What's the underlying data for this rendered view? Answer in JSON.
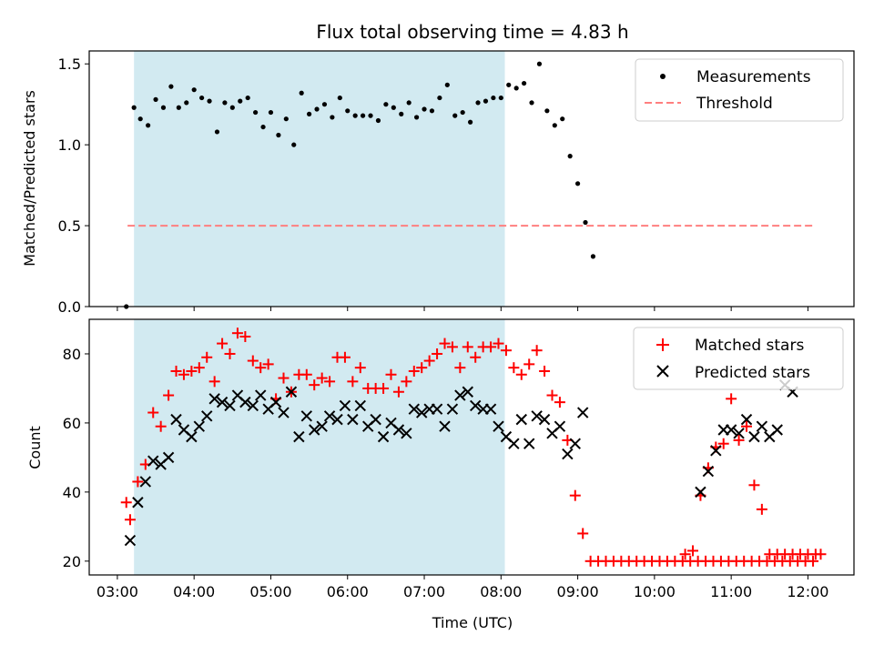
{
  "chart_data": [
    {
      "type": "scatter",
      "title": "Flux total observing time = 4.83 h",
      "ylabel": "Matched/Predicted stars",
      "xlabel": "",
      "ylim": [
        0,
        1.58
      ],
      "yticks": [
        0.0,
        0.5,
        1.0,
        1.5
      ],
      "ytick_labels": [
        "0.0",
        "0.5",
        "1.0",
        "1.5"
      ],
      "legend_position": "top-right",
      "shaded_interval": [
        "03:13",
        "08:03"
      ],
      "series": [
        {
          "name": "Measurements",
          "marker": "dot",
          "color": "#000000",
          "points": [
            [
              "03:07",
              0.0
            ],
            [
              "03:13",
              1.23
            ],
            [
              "03:18",
              1.16
            ],
            [
              "03:24",
              1.12
            ],
            [
              "03:30",
              1.28
            ],
            [
              "03:36",
              1.23
            ],
            [
              "03:42",
              1.36
            ],
            [
              "03:48",
              1.23
            ],
            [
              "03:54",
              1.26
            ],
            [
              "04:00",
              1.34
            ],
            [
              "04:06",
              1.29
            ],
            [
              "04:12",
              1.27
            ],
            [
              "04:18",
              1.08
            ],
            [
              "04:24",
              1.26
            ],
            [
              "04:30",
              1.23
            ],
            [
              "04:36",
              1.27
            ],
            [
              "04:42",
              1.29
            ],
            [
              "04:48",
              1.2
            ],
            [
              "04:54",
              1.11
            ],
            [
              "05:00",
              1.2
            ],
            [
              "05:06",
              1.06
            ],
            [
              "05:12",
              1.16
            ],
            [
              "05:18",
              1.0
            ],
            [
              "05:24",
              1.32
            ],
            [
              "05:30",
              1.19
            ],
            [
              "05:36",
              1.22
            ],
            [
              "05:42",
              1.25
            ],
            [
              "05:48",
              1.17
            ],
            [
              "05:54",
              1.29
            ],
            [
              "06:00",
              1.21
            ],
            [
              "06:06",
              1.18
            ],
            [
              "06:12",
              1.18
            ],
            [
              "06:18",
              1.18
            ],
            [
              "06:24",
              1.15
            ],
            [
              "06:30",
              1.25
            ],
            [
              "06:36",
              1.23
            ],
            [
              "06:42",
              1.19
            ],
            [
              "06:48",
              1.26
            ],
            [
              "06:54",
              1.17
            ],
            [
              "07:00",
              1.22
            ],
            [
              "07:06",
              1.21
            ],
            [
              "07:12",
              1.29
            ],
            [
              "07:18",
              1.37
            ],
            [
              "07:24",
              1.18
            ],
            [
              "07:30",
              1.2
            ],
            [
              "07:36",
              1.14
            ],
            [
              "07:42",
              1.26
            ],
            [
              "07:48",
              1.27
            ],
            [
              "07:54",
              1.29
            ],
            [
              "08:00",
              1.29
            ],
            [
              "08:06",
              1.37
            ],
            [
              "08:12",
              1.35
            ],
            [
              "08:18",
              1.38
            ],
            [
              "08:24",
              1.26
            ],
            [
              "08:30",
              1.5
            ],
            [
              "08:36",
              1.21
            ],
            [
              "08:42",
              1.12
            ],
            [
              "08:48",
              1.16
            ],
            [
              "08:54",
              0.93
            ],
            [
              "09:00",
              0.76
            ],
            [
              "09:06",
              0.52
            ],
            [
              "09:12",
              0.31
            ]
          ]
        },
        {
          "name": "Threshold",
          "marker": "dashed-line",
          "color": "#ff7f7f",
          "x_range": [
            "03:08",
            "12:05"
          ],
          "y": 0.5
        }
      ]
    },
    {
      "type": "scatter",
      "title": "",
      "ylabel": "Count",
      "xlabel": "Time (UTC)",
      "ylim": [
        16,
        90
      ],
      "yticks": [
        20,
        40,
        60,
        80
      ],
      "ytick_labels": [
        "20",
        "40",
        "60",
        "80"
      ],
      "xticks": [
        "03:00",
        "04:00",
        "05:00",
        "06:00",
        "07:00",
        "08:00",
        "09:00",
        "10:00",
        "11:00",
        "12:00"
      ],
      "xlim": [
        "02:38",
        "12:36"
      ],
      "legend_position": "top-right",
      "shaded_interval": [
        "03:13",
        "08:03"
      ],
      "series": [
        {
          "name": "Matched stars",
          "marker": "plus",
          "color": "#ff0000",
          "points": [
            [
              "03:07",
              37
            ],
            [
              "03:10",
              32
            ],
            [
              "03:16",
              43
            ],
            [
              "03:22",
              48
            ],
            [
              "03:28",
              63
            ],
            [
              "03:34",
              59
            ],
            [
              "03:40",
              68
            ],
            [
              "03:46",
              75
            ],
            [
              "03:52",
              74
            ],
            [
              "03:58",
              75
            ],
            [
              "04:04",
              76
            ],
            [
              "04:10",
              79
            ],
            [
              "04:16",
              72
            ],
            [
              "04:22",
              83
            ],
            [
              "04:28",
              80
            ],
            [
              "04:34",
              86
            ],
            [
              "04:40",
              85
            ],
            [
              "04:46",
              78
            ],
            [
              "04:52",
              76
            ],
            [
              "04:58",
              77
            ],
            [
              "05:04",
              67
            ],
            [
              "05:10",
              73
            ],
            [
              "05:16",
              69
            ],
            [
              "05:22",
              74
            ],
            [
              "05:28",
              74
            ],
            [
              "05:34",
              71
            ],
            [
              "05:40",
              73
            ],
            [
              "05:46",
              72
            ],
            [
              "05:52",
              79
            ],
            [
              "05:58",
              79
            ],
            [
              "06:04",
              72
            ],
            [
              "06:10",
              76
            ],
            [
              "06:16",
              70
            ],
            [
              "06:22",
              70
            ],
            [
              "06:28",
              70
            ],
            [
              "06:34",
              74
            ],
            [
              "06:40",
              69
            ],
            [
              "06:46",
              72
            ],
            [
              "06:52",
              75
            ],
            [
              "06:58",
              76
            ],
            [
              "07:04",
              78
            ],
            [
              "07:10",
              80
            ],
            [
              "07:16",
              83
            ],
            [
              "07:22",
              82
            ],
            [
              "07:28",
              76
            ],
            [
              "07:34",
              82
            ],
            [
              "07:40",
              79
            ],
            [
              "07:46",
              82
            ],
            [
              "07:52",
              82
            ],
            [
              "07:58",
              83
            ],
            [
              "08:04",
              81
            ],
            [
              "08:10",
              76
            ],
            [
              "08:16",
              74
            ],
            [
              "08:22",
              77
            ],
            [
              "08:28",
              81
            ],
            [
              "08:34",
              75
            ],
            [
              "08:40",
              68
            ],
            [
              "08:46",
              66
            ],
            [
              "08:52",
              55
            ],
            [
              "08:58",
              39
            ],
            [
              "09:04",
              28
            ],
            [
              "09:10",
              20
            ],
            [
              "09:16",
              20
            ],
            [
              "09:22",
              20
            ],
            [
              "09:28",
              20
            ],
            [
              "09:34",
              20
            ],
            [
              "09:40",
              20
            ],
            [
              "09:46",
              20
            ],
            [
              "09:52",
              20
            ],
            [
              "09:58",
              20
            ],
            [
              "10:04",
              20
            ],
            [
              "10:10",
              20
            ],
            [
              "10:16",
              20
            ],
            [
              "10:22",
              20
            ],
            [
              "10:28",
              20
            ],
            [
              "10:34",
              20
            ],
            [
              "10:40",
              20
            ],
            [
              "10:46",
              20
            ],
            [
              "10:52",
              20
            ],
            [
              "10:58",
              20
            ],
            [
              "11:04",
              20
            ],
            [
              "11:10",
              20
            ],
            [
              "11:16",
              20
            ],
            [
              "11:22",
              20
            ],
            [
              "11:28",
              20
            ],
            [
              "11:34",
              20
            ],
            [
              "11:40",
              20
            ],
            [
              "11:46",
              20
            ],
            [
              "11:52",
              20
            ],
            [
              "11:58",
              20
            ],
            [
              "12:04",
              20
            ],
            [
              "10:24",
              22
            ],
            [
              "10:30",
              23
            ],
            [
              "10:36",
              39
            ],
            [
              "10:42",
              47
            ],
            [
              "10:48",
              53
            ],
            [
              "10:54",
              54
            ],
            [
              "11:00",
              67
            ],
            [
              "11:06",
              55
            ],
            [
              "11:12",
              59
            ],
            [
              "11:18",
              42
            ],
            [
              "11:24",
              35
            ],
            [
              "11:30",
              22
            ],
            [
              "11:36",
              22
            ],
            [
              "11:42",
              22
            ],
            [
              "11:48",
              22
            ],
            [
              "11:54",
              22
            ],
            [
              "12:00",
              22
            ],
            [
              "12:06",
              22
            ],
            [
              "12:10",
              22
            ]
          ]
        },
        {
          "name": "Predicted stars",
          "marker": "x",
          "color": "#000000",
          "points": [
            [
              "03:10",
              26
            ],
            [
              "03:16",
              37
            ],
            [
              "03:22",
              43
            ],
            [
              "03:28",
              49
            ],
            [
              "03:34",
              48
            ],
            [
              "03:40",
              50
            ],
            [
              "03:46",
              61
            ],
            [
              "03:52",
              58
            ],
            [
              "03:58",
              56
            ],
            [
              "04:04",
              59
            ],
            [
              "04:10",
              62
            ],
            [
              "04:16",
              67
            ],
            [
              "04:22",
              66
            ],
            [
              "04:28",
              65
            ],
            [
              "04:34",
              68
            ],
            [
              "04:40",
              66
            ],
            [
              "04:46",
              65
            ],
            [
              "04:52",
              68
            ],
            [
              "04:58",
              64
            ],
            [
              "05:04",
              66
            ],
            [
              "05:10",
              63
            ],
            [
              "05:16",
              69
            ],
            [
              "05:22",
              56
            ],
            [
              "05:28",
              62
            ],
            [
              "05:34",
              58
            ],
            [
              "05:40",
              59
            ],
            [
              "05:46",
              62
            ],
            [
              "05:52",
              61
            ],
            [
              "05:58",
              65
            ],
            [
              "06:04",
              61
            ],
            [
              "06:10",
              65
            ],
            [
              "06:16",
              59
            ],
            [
              "06:22",
              61
            ],
            [
              "06:28",
              56
            ],
            [
              "06:34",
              60
            ],
            [
              "06:40",
              58
            ],
            [
              "06:46",
              57
            ],
            [
              "06:52",
              64
            ],
            [
              "06:58",
              63
            ],
            [
              "07:04",
              64
            ],
            [
              "07:10",
              64
            ],
            [
              "07:16",
              59
            ],
            [
              "07:22",
              64
            ],
            [
              "07:28",
              68
            ],
            [
              "07:34",
              69
            ],
            [
              "07:40",
              65
            ],
            [
              "07:46",
              64
            ],
            [
              "07:52",
              64
            ],
            [
              "07:58",
              59
            ],
            [
              "08:04",
              56
            ],
            [
              "08:10",
              54
            ],
            [
              "08:16",
              61
            ],
            [
              "08:22",
              54
            ],
            [
              "08:28",
              62
            ],
            [
              "08:34",
              61
            ],
            [
              "08:40",
              57
            ],
            [
              "08:46",
              59
            ],
            [
              "08:52",
              51
            ],
            [
              "08:58",
              54
            ],
            [
              "09:04",
              63
            ],
            [
              "10:36",
              40
            ],
            [
              "10:42",
              46
            ],
            [
              "10:48",
              52
            ],
            [
              "10:54",
              58
            ],
            [
              "11:00",
              58
            ],
            [
              "11:06",
              57
            ],
            [
              "11:12",
              61
            ],
            [
              "11:18",
              56
            ],
            [
              "11:24",
              59
            ],
            [
              "11:30",
              56
            ],
            [
              "11:36",
              58
            ],
            [
              "11:42",
              71
            ],
            [
              "11:48",
              69
            ]
          ]
        }
      ]
    }
  ],
  "colors": {
    "shade": "#add8e6",
    "threshold": "#ff7f7f",
    "matched": "#ff0000",
    "predicted": "#000000",
    "measurement": "#000000"
  }
}
